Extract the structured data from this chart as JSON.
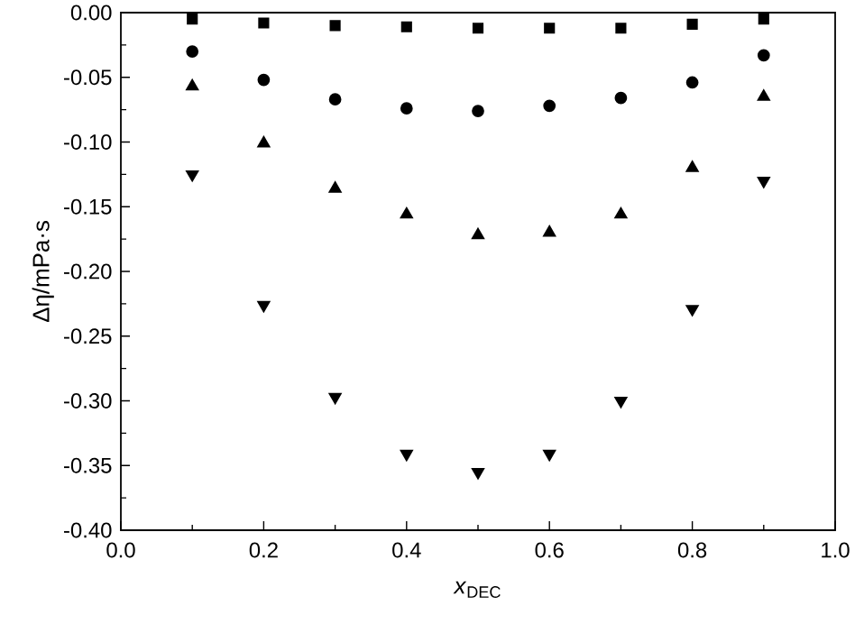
{
  "chart_data": {
    "type": "scatter",
    "xlabel": "*x*$_{DEC}$",
    "ylabel": "Δη/mPa·s",
    "x": [
      0.1,
      0.2,
      0.3,
      0.4,
      0.5,
      0.6,
      0.7,
      0.8,
      0.9
    ],
    "series": [
      {
        "color": "#000000",
        "marker": "square",
        "values": [
          -0.005,
          -0.008,
          -0.01,
          -0.011,
          -0.012,
          -0.012,
          -0.012,
          -0.009,
          -0.005
        ]
      },
      {
        "color": "#000000",
        "marker": "circle",
        "values": [
          -0.03,
          -0.052,
          -0.067,
          -0.074,
          -0.076,
          -0.072,
          -0.066,
          -0.054,
          -0.033
        ]
      },
      {
        "color": "#000000",
        "marker": "triangle",
        "values": [
          -0.057,
          -0.101,
          -0.136,
          -0.156,
          -0.172,
          -0.17,
          -0.156,
          -0.12,
          -0.065
        ]
      },
      {
        "color": "#000000",
        "marker": "triangle-down",
        "values": [
          -0.125,
          -0.226,
          -0.297,
          -0.341,
          -0.355,
          -0.341,
          -0.3,
          -0.229,
          -0.13
        ]
      }
    ],
    "xlim": [
      0.0,
      1.0
    ],
    "ylim": [
      -0.4,
      0.0
    ],
    "xticks": [
      {
        "value": 0.0,
        "label": "0.0"
      },
      {
        "value": 0.2,
        "label": "0.2"
      },
      {
        "value": 0.4,
        "label": "0.4"
      },
      {
        "value": 0.6,
        "label": "0.6"
      },
      {
        "value": 0.8,
        "label": "0.8"
      },
      {
        "value": 1.0,
        "label": "1.0"
      }
    ],
    "yticks": [
      {
        "value": 0.0,
        "label": "0.00"
      },
      {
        "value": -0.05,
        "label": "-0.05"
      },
      {
        "value": -0.1,
        "label": "-0.10"
      },
      {
        "value": -0.15,
        "label": "-0.15"
      },
      {
        "value": -0.2,
        "label": "-0.20"
      },
      {
        "value": -0.25,
        "label": "-0.25"
      },
      {
        "value": -0.3,
        "label": "-0.30"
      },
      {
        "value": -0.35,
        "label": "-0.35"
      },
      {
        "value": -0.4,
        "label": "-0.40"
      }
    ],
    "grid": false
  }
}
